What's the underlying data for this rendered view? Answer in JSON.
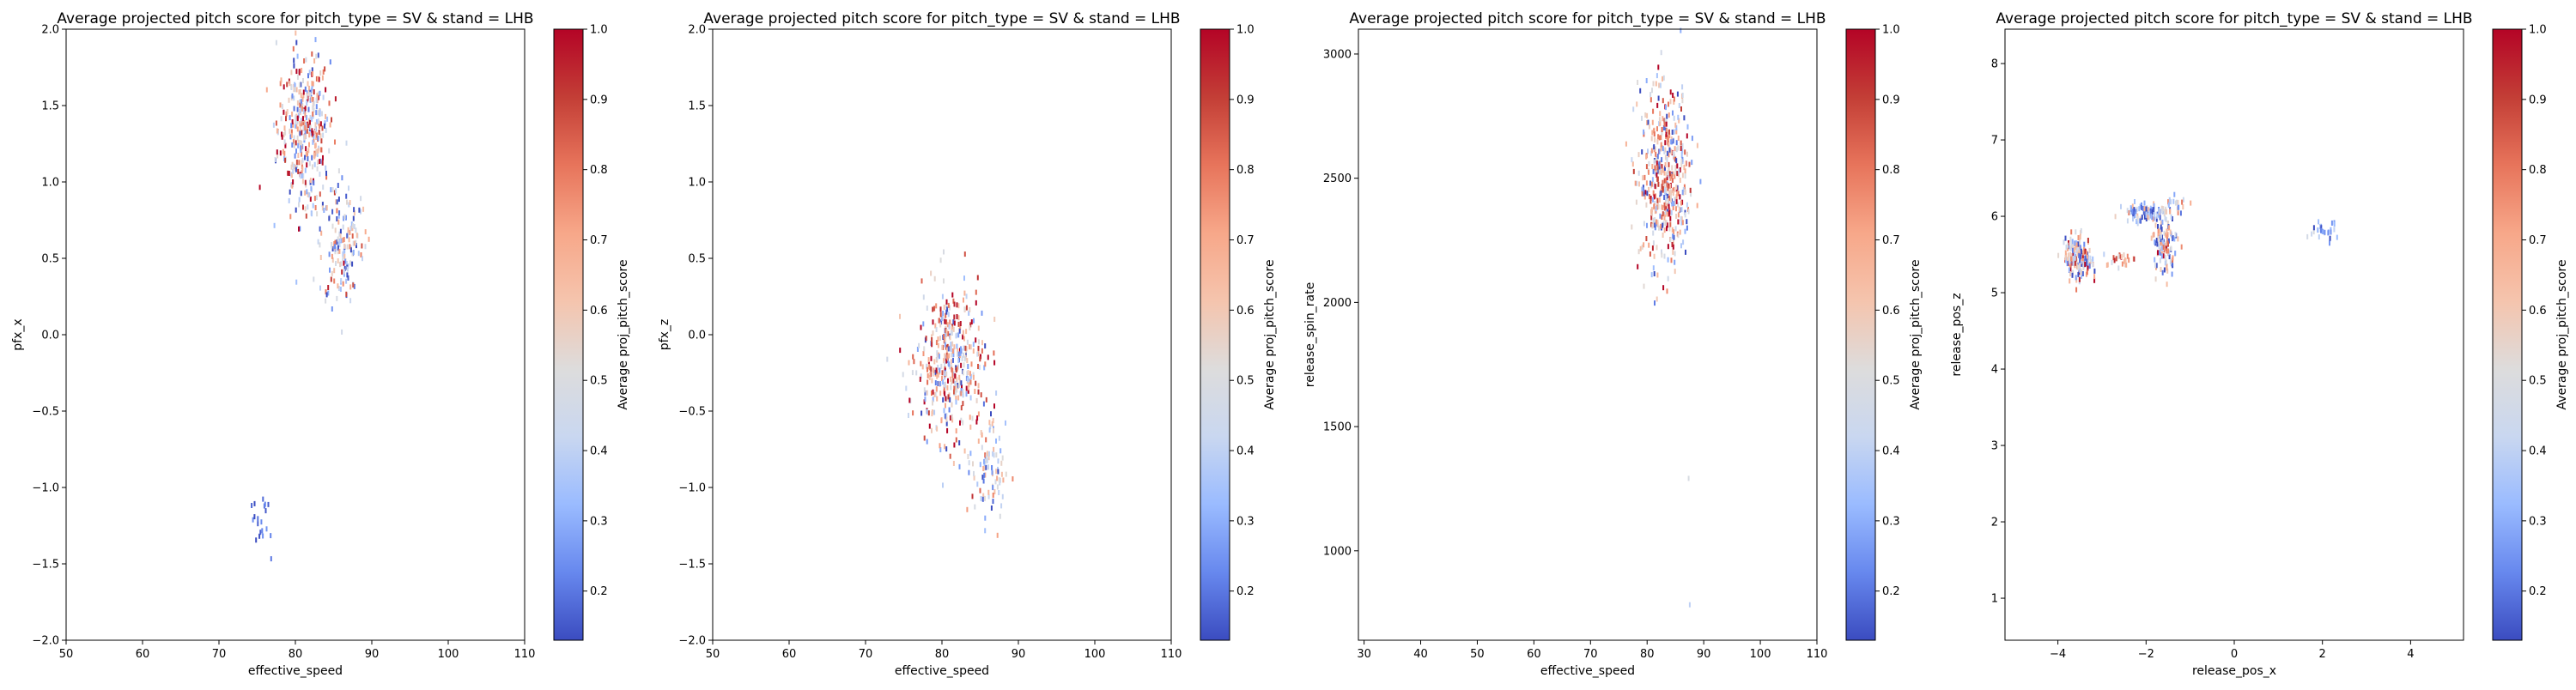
{
  "colors": {
    "cmap": [
      "#3b4cc0",
      "#6788ee",
      "#9abbff",
      "#c9d7f0",
      "#dddcdc",
      "#f5c4ad",
      "#f7a789",
      "#e7745b",
      "#c33e36",
      "#b40426"
    ]
  },
  "chart_data": [
    {
      "type": "scatter",
      "title": "Average projected pitch score for pitch_type = SV & stand = LHB",
      "xlabel": "effective_speed",
      "ylabel": "pfx_x",
      "xlim": [
        50,
        110
      ],
      "ylim": [
        -2.0,
        2.0
      ],
      "xticks": [
        "50",
        "60",
        "70",
        "80",
        "90",
        "100",
        "110"
      ],
      "yticks": [
        "2.0",
        "1.5",
        "1.0",
        "0.5",
        "0.0",
        "−0.5",
        "−1.0",
        "−1.5",
        "−2.0"
      ],
      "colorbar": {
        "label": "Average proj_pitch_score",
        "ticks": [
          "1.0",
          "0.9",
          "0.8",
          "0.7",
          "0.6",
          "0.5",
          "0.4",
          "0.3",
          "0.2"
        ],
        "range": [
          0.13,
          1.0
        ]
      },
      "clusters": [
        {
          "x": 81,
          "y": 1.35,
          "sx": 1.7,
          "sy": 0.25,
          "n": 380,
          "c": 0.58,
          "cs": 0.28
        },
        {
          "x": 86,
          "y": 0.6,
          "sx": 1.5,
          "sy": 0.2,
          "n": 160,
          "c": 0.4,
          "cs": 0.25
        },
        {
          "x": 75.5,
          "y": -1.25,
          "sx": 0.6,
          "sy": 0.1,
          "n": 20,
          "c": 0.18,
          "cs": 0.05
        }
      ]
    },
    {
      "type": "scatter",
      "title": "Average projected pitch score for pitch_type = SV & stand = LHB",
      "xlabel": "effective_speed",
      "ylabel": "pfx_z",
      "xlim": [
        50,
        110
      ],
      "ylim": [
        -2.0,
        2.0
      ],
      "xticks": [
        "50",
        "60",
        "70",
        "80",
        "90",
        "100",
        "110"
      ],
      "yticks": [
        "2.0",
        "1.5",
        "1.0",
        "0.5",
        "0.0",
        "−0.5",
        "−1.0",
        "−1.5",
        "−2.0"
      ],
      "colorbar": {
        "label": "Average proj_pitch_score",
        "ticks": [
          "1.0",
          "0.9",
          "0.8",
          "0.7",
          "0.6",
          "0.5",
          "0.4",
          "0.3",
          "0.2"
        ],
        "range": [
          0.13,
          1.0
        ]
      },
      "clusters": [
        {
          "x": 81,
          "y": -0.2,
          "sx": 2.2,
          "sy": 0.25,
          "n": 420,
          "c": 0.6,
          "cs": 0.28
        },
        {
          "x": 86,
          "y": -0.9,
          "sx": 1.1,
          "sy": 0.16,
          "n": 90,
          "c": 0.4,
          "cs": 0.2
        }
      ]
    },
    {
      "type": "scatter",
      "title": "Average projected pitch score for pitch_type = SV & stand = LHB",
      "xlabel": "effective_speed",
      "ylabel": "release_spin_rate",
      "xlim": [
        29,
        110
      ],
      "ylim": [
        640,
        3100
      ],
      "xticks": [
        "30",
        "40",
        "50",
        "60",
        "70",
        "80",
        "90",
        "100",
        "110"
      ],
      "yticks": [
        "3000",
        "2500",
        "2000",
        "1500",
        "1000"
      ],
      "colorbar": {
        "label": "Average proj_pitch_score",
        "ticks": [
          "1.0",
          "0.9",
          "0.8",
          "0.7",
          "0.6",
          "0.5",
          "0.4",
          "0.3",
          "0.2"
        ],
        "range": [
          0.13,
          1.0
        ]
      },
      "clusters": [
        {
          "x": 83,
          "y": 2500,
          "sx": 2.3,
          "sy": 180,
          "n": 480,
          "c": 0.58,
          "cs": 0.28
        },
        {
          "x": 87,
          "y": 1300,
          "sx": 0.2,
          "sy": 10,
          "n": 1,
          "c": 0.5,
          "cs": 0.1
        },
        {
          "x": 87.5,
          "y": 790,
          "sx": 0.2,
          "sy": 10,
          "n": 1,
          "c": 0.5,
          "cs": 0.1
        }
      ]
    },
    {
      "type": "scatter",
      "title": "Average projected pitch score for pitch_type = SV & stand = LHB",
      "xlabel": "release_pos_x",
      "ylabel": "release_pos_z",
      "xlim": [
        -5.2,
        5.2
      ],
      "ylim": [
        0.45,
        8.45
      ],
      "xticks": [
        "−4",
        "−2",
        "0",
        "2",
        "4"
      ],
      "yticks": [
        "8",
        "7",
        "6",
        "5",
        "4",
        "3",
        "2",
        "1"
      ],
      "colorbar": {
        "label": "Average proj_pitch_score",
        "ticks": [
          "1.0",
          "0.9",
          "0.8",
          "0.7",
          "0.6",
          "0.5",
          "0.4",
          "0.3",
          "0.2"
        ],
        "range": [
          0.13,
          1.0
        ]
      },
      "clusters": [
        {
          "x": -3.55,
          "y": 5.45,
          "sx": 0.15,
          "sy": 0.14,
          "n": 170,
          "c": 0.55,
          "cs": 0.28
        },
        {
          "x": -2.6,
          "y": 5.42,
          "sx": 0.2,
          "sy": 0.05,
          "n": 25,
          "c": 0.65,
          "cs": 0.2
        },
        {
          "x": -2.0,
          "y": 6.05,
          "sx": 0.25,
          "sy": 0.06,
          "n": 90,
          "c": 0.3,
          "cs": 0.2
        },
        {
          "x": -1.6,
          "y": 5.6,
          "sx": 0.15,
          "sy": 0.18,
          "n": 110,
          "c": 0.5,
          "cs": 0.28
        },
        {
          "x": -1.35,
          "y": 6.15,
          "sx": 0.15,
          "sy": 0.06,
          "n": 25,
          "c": 0.45,
          "cs": 0.25
        },
        {
          "x": 2.05,
          "y": 5.8,
          "sx": 0.15,
          "sy": 0.06,
          "n": 28,
          "c": 0.3,
          "cs": 0.15
        }
      ]
    }
  ]
}
